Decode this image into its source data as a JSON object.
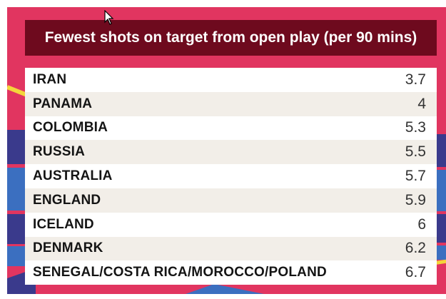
{
  "title": "Fewest shots on target from open play (per 90 mins)",
  "colors": {
    "background": "#e13560",
    "title_bar": "#6e0a1e",
    "stripe_dark_blue": "#3a3a8c",
    "stripe_blue": "#3b6fc0",
    "stripe_yellow": "#f3d63b"
  },
  "rows": [
    {
      "country": "IRAN",
      "value": "3.7"
    },
    {
      "country": "PANAMA",
      "value": "4"
    },
    {
      "country": "COLOMBIA",
      "value": "5.3"
    },
    {
      "country": "RUSSIA",
      "value": "5.5"
    },
    {
      "country": "AUSTRALIA",
      "value": "5.7"
    },
    {
      "country": "ENGLAND",
      "value": "5.9"
    },
    {
      "country": "ICELAND",
      "value": "6"
    },
    {
      "country": "DENMARK",
      "value": "6.2"
    },
    {
      "country": "SENEGAL/COSTA RICA/MOROCCO/POLAND",
      "value": "6.7"
    }
  ],
  "cursor_icon": "mouse-pointer-icon"
}
